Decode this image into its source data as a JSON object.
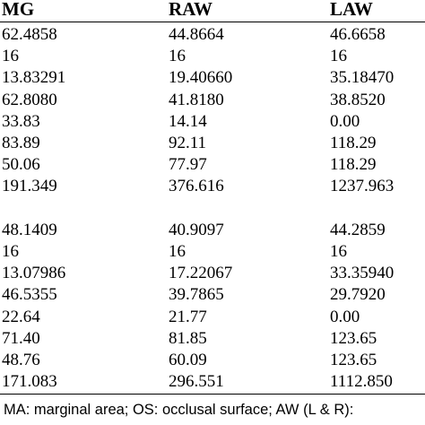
{
  "headers": [
    "MG",
    "RAW",
    "LAW"
  ],
  "rows": [
    [
      "62.4858",
      "44.8664",
      "46.6658"
    ],
    [
      "16",
      "16",
      "16"
    ],
    [
      "13.83291",
      "19.40660",
      "35.18470"
    ],
    [
      "62.8080",
      "41.8180",
      "38.8520"
    ],
    [
      "33.83",
      "14.14",
      "0.00"
    ],
    [
      "83.89",
      "92.11",
      "118.29"
    ],
    [
      "50.06",
      "77.97",
      "118.29"
    ],
    [
      "191.349",
      "376.616",
      "1237.963"
    ],
    [
      "",
      "",
      ""
    ],
    [
      "48.1409",
      "40.9097",
      "44.2859"
    ],
    [
      "16",
      "16",
      "16"
    ],
    [
      "13.07986",
      "17.22067",
      "33.35940"
    ],
    [
      "46.5355",
      "39.7865",
      "29.7920"
    ],
    [
      "22.64",
      "21.77",
      "0.00"
    ],
    [
      "71.40",
      "81.85",
      "123.65"
    ],
    [
      "48.76",
      "60.09",
      "123.65"
    ],
    [
      "171.083",
      "296.551",
      "1112.850"
    ]
  ],
  "footnote": "MA: marginal area; OS: occlusal surface; AW (L & R):"
}
